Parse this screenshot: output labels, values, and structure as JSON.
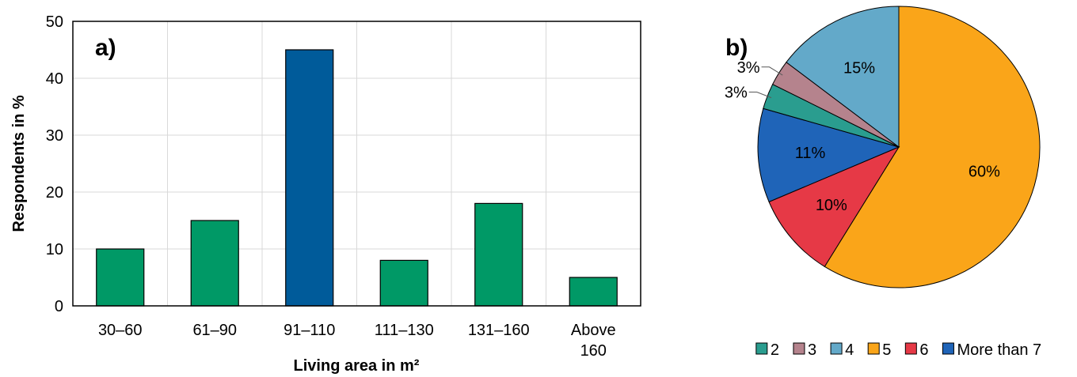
{
  "chart_data": [
    {
      "type": "bar",
      "panel_label": "a)",
      "categories": [
        "30–60",
        "61–90",
        "91–110",
        "111–130",
        "131–160",
        "Above 160"
      ],
      "category_lines": [
        [
          "30–60"
        ],
        [
          "61–90"
        ],
        [
          "91–110"
        ],
        [
          "111–130"
        ],
        [
          "131–160"
        ],
        [
          "Above",
          "160"
        ]
      ],
      "values": [
        10,
        15,
        45,
        8,
        18,
        5
      ],
      "bar_colors": [
        "#009966",
        "#009966",
        "#005b9a",
        "#009966",
        "#009966",
        "#009966"
      ],
      "xlabel": "Living area in m²",
      "ylabel": "Respondents in %",
      "ylim": [
        0,
        50
      ],
      "yticks": [
        0,
        10,
        20,
        30,
        40,
        50
      ],
      "grid": true,
      "legend": false
    },
    {
      "type": "pie",
      "panel_label": "b)",
      "slices": [
        {
          "name": "5",
          "value": 60,
          "label": "60%",
          "color": "#faa519"
        },
        {
          "name": "6",
          "value": 10,
          "label": "10%",
          "color": "#e63946"
        },
        {
          "name": "More than 7",
          "value": 11,
          "label": "11%",
          "color": "#1f64b8"
        },
        {
          "name": "2",
          "value": 3,
          "label": "3%",
          "color": "#2a9d8f"
        },
        {
          "name": "3",
          "value": 3,
          "label": "3%",
          "color": "#b5838d"
        },
        {
          "name": "4",
          "value": 15,
          "label": "15%",
          "color": "#63a9c9"
        }
      ],
      "legend_order": [
        "2",
        "3",
        "4",
        "5",
        "6",
        "More than 7"
      ],
      "legend_position": "bottom"
    }
  ]
}
